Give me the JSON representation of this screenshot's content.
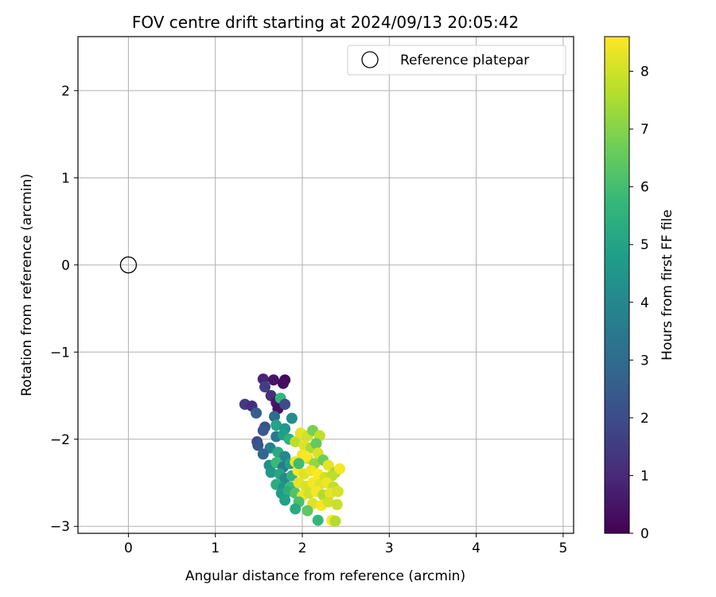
{
  "chart_data": {
    "type": "scatter",
    "title": "FOV centre drift starting at 2024/09/13 20:05:42",
    "xlabel": "Angular distance from reference (arcmin)",
    "ylabel": "Rotation from reference (arcmin)",
    "xlim": [
      -0.58,
      5.12
    ],
    "ylim": [
      -3.08,
      2.62
    ],
    "xticks": [
      0,
      1,
      2,
      3,
      4,
      5
    ],
    "yticks": [
      -3,
      -2,
      -1,
      0,
      1,
      2
    ],
    "grid": true,
    "legend": {
      "placement": "top-right",
      "entries": [
        "Reference platepar"
      ]
    },
    "reference_point": {
      "x": 0,
      "y": 0
    },
    "colorbar": {
      "label": "Hours from first FF file",
      "min": 0,
      "max": 8.6,
      "ticks": [
        0,
        1,
        2,
        3,
        4,
        5,
        6,
        7,
        8
      ],
      "colormap": "viridis"
    },
    "points": [
      {
        "x": 1.55,
        "y": -1.31,
        "t": 0.9
      },
      {
        "x": 1.67,
        "y": -1.32,
        "t": 0.5
      },
      {
        "x": 1.8,
        "y": -1.32,
        "t": 0.2
      },
      {
        "x": 1.78,
        "y": -1.36,
        "t": 0.3
      },
      {
        "x": 1.57,
        "y": -1.4,
        "t": 1.6
      },
      {
        "x": 1.64,
        "y": -1.5,
        "t": 1.2
      },
      {
        "x": 1.7,
        "y": -1.58,
        "t": 0.6
      },
      {
        "x": 1.75,
        "y": -1.53,
        "t": 5.7
      },
      {
        "x": 1.72,
        "y": -1.65,
        "t": 0.4
      },
      {
        "x": 1.8,
        "y": -1.6,
        "t": 2.0
      },
      {
        "x": 1.34,
        "y": -1.6,
        "t": 1.5
      },
      {
        "x": 1.42,
        "y": -1.62,
        "t": 1.1
      },
      {
        "x": 1.47,
        "y": -1.7,
        "t": 2.6
      },
      {
        "x": 1.68,
        "y": -1.74,
        "t": 3.0
      },
      {
        "x": 1.57,
        "y": -1.86,
        "t": 2.2
      },
      {
        "x": 1.55,
        "y": -1.9,
        "t": 2.4
      },
      {
        "x": 1.7,
        "y": -1.84,
        "t": 5.0
      },
      {
        "x": 1.8,
        "y": -1.88,
        "t": 4.5
      },
      {
        "x": 1.88,
        "y": -1.76,
        "t": 4.2
      },
      {
        "x": 1.48,
        "y": -2.03,
        "t": 2.0
      },
      {
        "x": 1.49,
        "y": -2.07,
        "t": 2.3
      },
      {
        "x": 1.7,
        "y": -1.97,
        "t": 3.5
      },
      {
        "x": 1.78,
        "y": -1.95,
        "t": 4.8
      },
      {
        "x": 1.85,
        "y": -2.0,
        "t": 5.5
      },
      {
        "x": 1.63,
        "y": -2.1,
        "t": 3.8
      },
      {
        "x": 1.55,
        "y": -2.17,
        "t": 2.8
      },
      {
        "x": 1.72,
        "y": -2.15,
        "t": 5.2
      },
      {
        "x": 1.8,
        "y": -2.2,
        "t": 4.0
      },
      {
        "x": 1.92,
        "y": -2.03,
        "t": 7.7
      },
      {
        "x": 1.98,
        "y": -1.93,
        "t": 8.3
      },
      {
        "x": 2.06,
        "y": -1.96,
        "t": 8.0
      },
      {
        "x": 2.12,
        "y": -1.9,
        "t": 6.8
      },
      {
        "x": 2.2,
        "y": -1.96,
        "t": 7.8
      },
      {
        "x": 2.02,
        "y": -2.07,
        "t": 8.2
      },
      {
        "x": 2.1,
        "y": -2.1,
        "t": 7.5
      },
      {
        "x": 2.16,
        "y": -2.05,
        "t": 6.5
      },
      {
        "x": 2.0,
        "y": -2.18,
        "t": 8.5
      },
      {
        "x": 2.18,
        "y": -2.16,
        "t": 8.1
      },
      {
        "x": 1.62,
        "y": -2.3,
        "t": 4.3
      },
      {
        "x": 1.7,
        "y": -2.27,
        "t": 5.8
      },
      {
        "x": 1.78,
        "y": -2.32,
        "t": 3.6
      },
      {
        "x": 1.86,
        "y": -2.28,
        "t": 4.9
      },
      {
        "x": 1.64,
        "y": -2.38,
        "t": 4.6
      },
      {
        "x": 1.74,
        "y": -2.4,
        "t": 5.1
      },
      {
        "x": 1.92,
        "y": -2.26,
        "t": 8.4
      },
      {
        "x": 2.06,
        "y": -2.22,
        "t": 8.0
      },
      {
        "x": 2.14,
        "y": -2.28,
        "t": 7.2
      },
      {
        "x": 2.24,
        "y": -2.24,
        "t": 6.6
      },
      {
        "x": 2.3,
        "y": -2.3,
        "t": 8.3
      },
      {
        "x": 2.38,
        "y": -2.38,
        "t": 7.4
      },
      {
        "x": 2.43,
        "y": -2.34,
        "t": 8.5
      },
      {
        "x": 1.8,
        "y": -2.45,
        "t": 4.1
      },
      {
        "x": 1.88,
        "y": -2.42,
        "t": 5.6
      },
      {
        "x": 1.95,
        "y": -2.36,
        "t": 8.6
      },
      {
        "x": 2.02,
        "y": -2.4,
        "t": 8.2
      },
      {
        "x": 2.1,
        "y": -2.36,
        "t": 8.4
      },
      {
        "x": 2.18,
        "y": -2.4,
        "t": 8.6
      },
      {
        "x": 2.26,
        "y": -2.44,
        "t": 8.0
      },
      {
        "x": 2.34,
        "y": -2.42,
        "t": 7.7
      },
      {
        "x": 1.7,
        "y": -2.52,
        "t": 5.3
      },
      {
        "x": 1.78,
        "y": -2.56,
        "t": 4.4
      },
      {
        "x": 1.86,
        "y": -2.55,
        "t": 5.9
      },
      {
        "x": 1.96,
        "y": -2.5,
        "t": 8.3
      },
      {
        "x": 2.04,
        "y": -2.54,
        "t": 8.1
      },
      {
        "x": 2.12,
        "y": -2.5,
        "t": 8.5
      },
      {
        "x": 2.2,
        "y": -2.52,
        "t": 8.2
      },
      {
        "x": 2.28,
        "y": -2.5,
        "t": 8.4
      },
      {
        "x": 2.36,
        "y": -2.55,
        "t": 7.8
      },
      {
        "x": 1.76,
        "y": -2.62,
        "t": 4.7
      },
      {
        "x": 1.84,
        "y": -2.6,
        "t": 5.4
      },
      {
        "x": 1.92,
        "y": -2.62,
        "t": 6.2
      },
      {
        "x": 2.0,
        "y": -2.65,
        "t": 8.4
      },
      {
        "x": 2.08,
        "y": -2.62,
        "t": 8.0
      },
      {
        "x": 2.16,
        "y": -2.6,
        "t": 8.5
      },
      {
        "x": 2.24,
        "y": -2.64,
        "t": 7.6
      },
      {
        "x": 2.32,
        "y": -2.62,
        "t": 8.3
      },
      {
        "x": 2.41,
        "y": -2.6,
        "t": 8.1
      },
      {
        "x": 1.8,
        "y": -2.7,
        "t": 4.9
      },
      {
        "x": 1.96,
        "y": -2.72,
        "t": 6.1
      },
      {
        "x": 2.12,
        "y": -2.74,
        "t": 8.2
      },
      {
        "x": 2.22,
        "y": -2.76,
        "t": 8.5
      },
      {
        "x": 2.3,
        "y": -2.72,
        "t": 8.0
      },
      {
        "x": 2.4,
        "y": -2.75,
        "t": 7.9
      },
      {
        "x": 1.92,
        "y": -2.8,
        "t": 5.2
      },
      {
        "x": 2.06,
        "y": -2.82,
        "t": 6.4
      },
      {
        "x": 2.18,
        "y": -2.93,
        "t": 5.7
      },
      {
        "x": 2.34,
        "y": -2.93,
        "t": 8.6
      },
      {
        "x": 2.38,
        "y": -2.94,
        "t": 7.6
      },
      {
        "x": 2.04,
        "y": -2.2,
        "t": 8.6
      },
      {
        "x": 1.96,
        "y": -2.28,
        "t": 5.9
      }
    ]
  }
}
